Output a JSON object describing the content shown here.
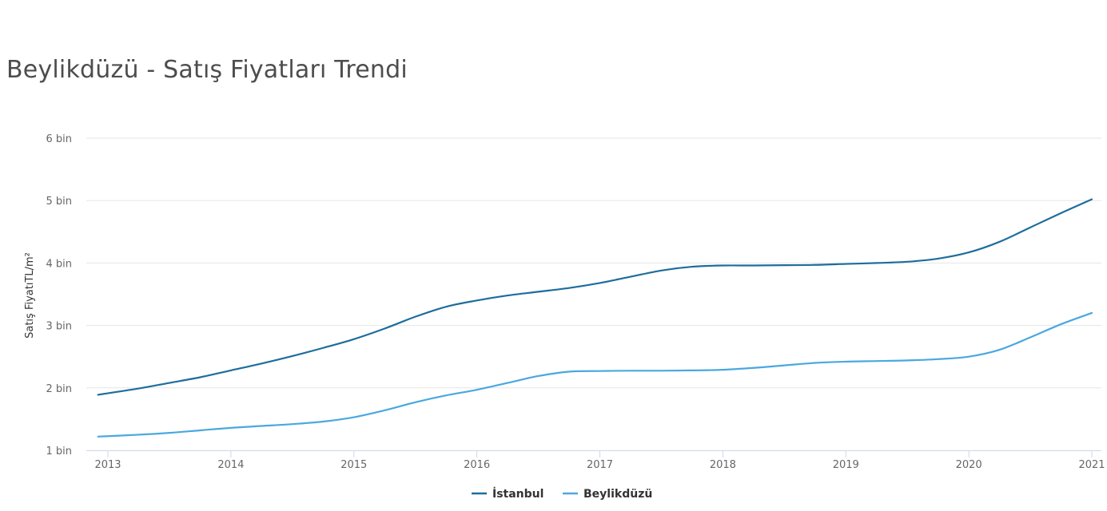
{
  "title": "Beylikdüzü - Satış Fiyatları Trendi",
  "chart_data": {
    "type": "line",
    "title": "Beylikdüzü - Satış Fiyatları Trendi",
    "ylabel": "Satış FiyatıTL/m²",
    "xlabel": "",
    "xlim": [
      2012.92,
      2021.1
    ],
    "ylim": [
      1000,
      6000
    ],
    "grid": true,
    "legend_position": "bottom-center",
    "x_ticks": [
      2013,
      2014,
      2015,
      2016,
      2017,
      2018,
      2019,
      2020,
      2021
    ],
    "x_tick_labels": [
      "2013",
      "2014",
      "2015",
      "2016",
      "2017",
      "2018",
      "2019",
      "2020",
      "2021"
    ],
    "y_ticks": [
      1000,
      2000,
      3000,
      4000,
      5000,
      6000
    ],
    "y_tick_labels": [
      "1 bin",
      "2 bin",
      "3 bin",
      "4 bin",
      "5 bin",
      "6 bin"
    ],
    "x": [
      2012.92,
      2013.25,
      2013.5,
      2013.75,
      2014.0,
      2014.25,
      2014.5,
      2014.75,
      2015.0,
      2015.25,
      2015.5,
      2015.75,
      2016.0,
      2016.25,
      2016.5,
      2016.75,
      2017.0,
      2017.25,
      2017.5,
      2017.75,
      2018.0,
      2018.25,
      2018.5,
      2018.75,
      2019.0,
      2019.25,
      2019.5,
      2019.75,
      2020.0,
      2020.25,
      2020.5,
      2020.75,
      2021.0
    ],
    "series": [
      {
        "name": "İstanbul",
        "color": "#1e6d9c",
        "values": [
          1890,
          1990,
          2080,
          2170,
          2280,
          2390,
          2510,
          2640,
          2780,
          2950,
          3140,
          3300,
          3400,
          3480,
          3540,
          3600,
          3680,
          3780,
          3880,
          3940,
          3960,
          3960,
          3965,
          3970,
          3985,
          4000,
          4020,
          4070,
          4170,
          4340,
          4570,
          4800,
          5020
        ]
      },
      {
        "name": "Beylikdüzü",
        "color": "#4aa8df",
        "values": [
          1220,
          1250,
          1280,
          1320,
          1360,
          1390,
          1420,
          1460,
          1530,
          1640,
          1770,
          1880,
          1970,
          2080,
          2190,
          2260,
          2270,
          2275,
          2275,
          2280,
          2290,
          2320,
          2360,
          2400,
          2420,
          2430,
          2440,
          2460,
          2500,
          2610,
          2810,
          3020,
          3200
        ]
      }
    ]
  }
}
